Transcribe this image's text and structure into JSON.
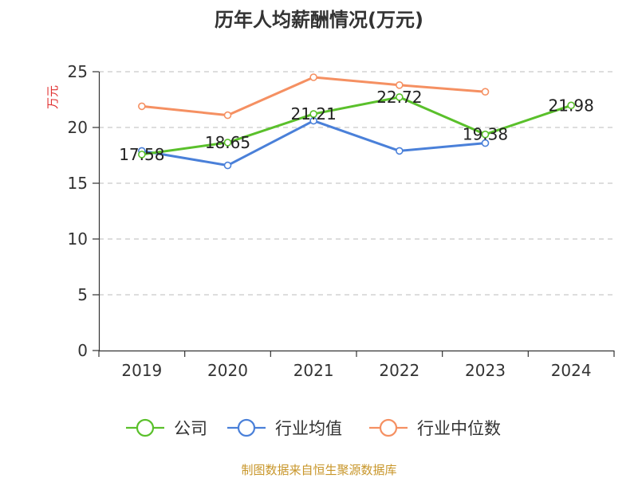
{
  "chart_data": {
    "type": "line",
    "title": "历年人均薪酬情况(万元)",
    "ylabel": "万元",
    "xlabel": "",
    "categories": [
      "2019",
      "2020",
      "2021",
      "2022",
      "2023",
      "2024"
    ],
    "ylim": [
      0,
      25
    ],
    "yticks": [
      0,
      5,
      10,
      15,
      20,
      25
    ],
    "grid": "horizontal dashed",
    "legend_position": "bottom",
    "series": [
      {
        "name": "公司",
        "color": "#5ac02b",
        "values": [
          17.58,
          18.65,
          21.21,
          22.72,
          19.38,
          21.98
        ],
        "show_labels": true
      },
      {
        "name": "行业均值",
        "color": "#4a80d9",
        "values": [
          17.9,
          16.6,
          20.6,
          17.9,
          18.6,
          null
        ],
        "show_labels": false
      },
      {
        "name": "行业中位数",
        "color": "#f59062",
        "values": [
          21.9,
          21.1,
          24.5,
          23.8,
          23.2,
          null
        ],
        "show_labels": false
      }
    ]
  },
  "source_text": "制图数据来自恒生聚源数据库"
}
